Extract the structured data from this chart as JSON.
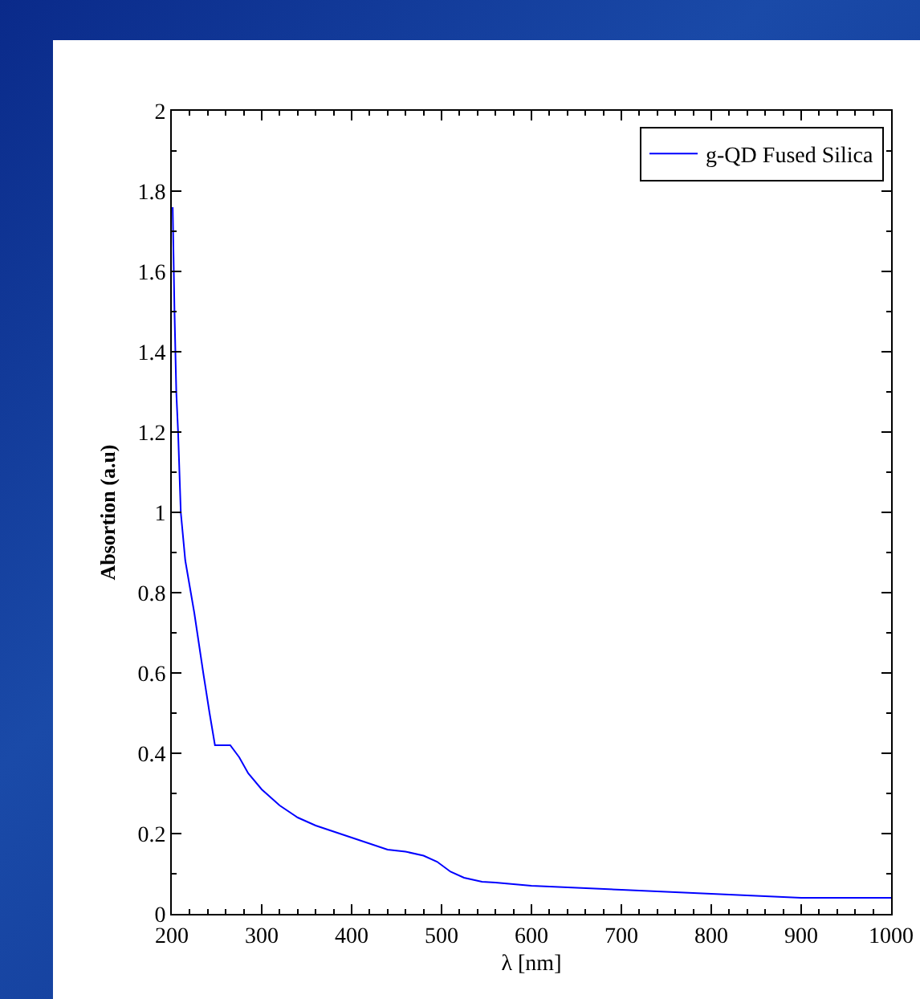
{
  "chart_data": {
    "type": "line",
    "xlabel": "λ [nm]",
    "ylabel": "Absortion (a.u)",
    "xlim": [
      200,
      1000
    ],
    "xticks": [
      200,
      300,
      400,
      500,
      600,
      700,
      800,
      900,
      1000
    ],
    "ylim": [
      0,
      2
    ],
    "yticks": [
      0,
      0.2,
      0.4,
      0.6,
      0.8,
      1,
      1.2,
      1.4,
      1.6,
      1.8,
      2
    ],
    "grid": false,
    "legend": "top right",
    "marker": "none",
    "line_style": "solid",
    "series": [
      {
        "name": "g-QD Fused Silica",
        "color": "#0000ff",
        "x": [
          201,
          203,
          205,
          207,
          210,
          215,
          225,
          235,
          242,
          248,
          265,
          275,
          285,
          300,
          320,
          340,
          360,
          400,
          440,
          460,
          480,
          495,
          510,
          525,
          545,
          560,
          600,
          700,
          800,
          900,
          1000
        ],
        "values": [
          1.76,
          1.5,
          1.3,
          1.2,
          1.0,
          0.88,
          0.75,
          0.6,
          0.5,
          0.42,
          0.42,
          0.39,
          0.35,
          0.31,
          0.27,
          0.24,
          0.22,
          0.19,
          0.16,
          0.155,
          0.145,
          0.13,
          0.105,
          0.09,
          0.08,
          0.078,
          0.07,
          0.06,
          0.05,
          0.04,
          0.04
        ]
      }
    ]
  }
}
